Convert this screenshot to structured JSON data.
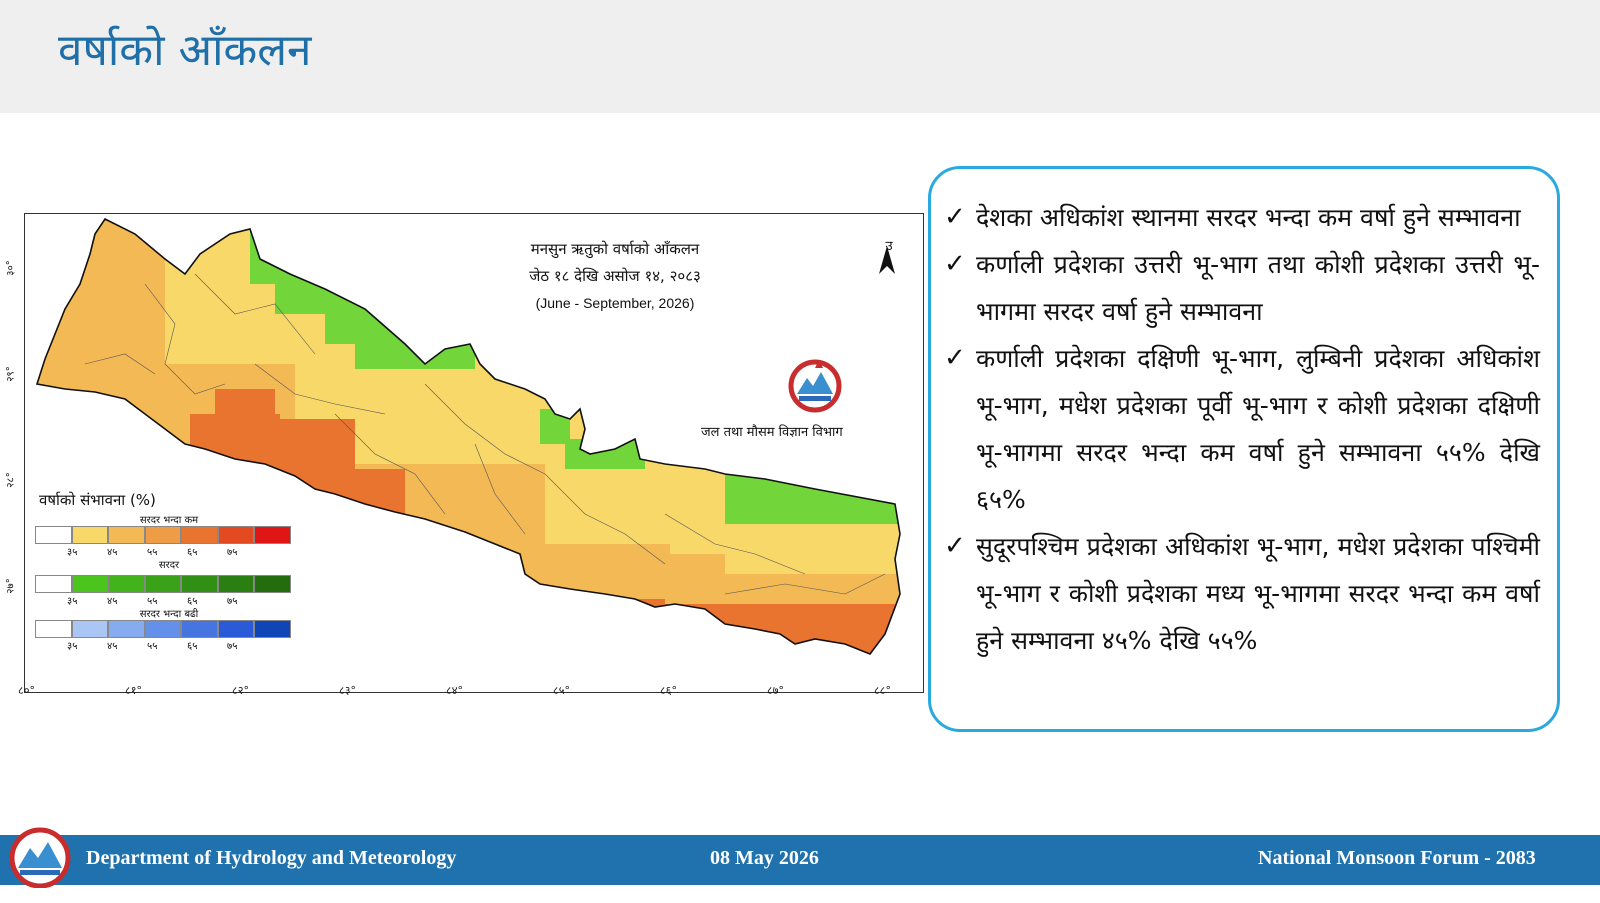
{
  "header": {
    "title": "वर्षाको आँकलन"
  },
  "map": {
    "title_line1": "मनसुन ऋतुको वर्षाको आँकलन",
    "title_line2": "जेठ १८ देखि असोज १४, २०८३",
    "title_line3": "(June - September, 2026)",
    "north_label": "उ",
    "agency_label": "जल तथा मौसम विज्ञान विभाग",
    "lat_labels": [
      "३०°",
      "२९°",
      "२८°",
      "२७°"
    ],
    "lon_labels": [
      "८०°",
      "८१°",
      "८२°",
      "८३°",
      "८४°",
      "८५°",
      "८६°",
      "८७°",
      "८८°"
    ],
    "legend": {
      "title": "वर्षाको संभावना (%)",
      "below_normal": {
        "label": "सरदर भन्दा कम",
        "colors": [
          "#ffffff",
          "#f9d86a",
          "#f3b955",
          "#ef9c46",
          "#e9742f",
          "#e44a22",
          "#e01515"
        ],
        "ticks": [
          "३५",
          "४५",
          "५५",
          "६५",
          "७५"
        ]
      },
      "normal": {
        "label": "सरदर",
        "colors": [
          "#ffffff",
          "#4cc41e",
          "#43b31b",
          "#3aa218",
          "#328f15",
          "#2b7e12",
          "#236d0f"
        ],
        "ticks": [
          "३५",
          "४५",
          "५५",
          "६५",
          "७५"
        ]
      },
      "above_normal": {
        "label": "सरदर भन्दा बढी",
        "colors": [
          "#ffffff",
          "#a9c6f5",
          "#86abef",
          "#6490ea",
          "#4675e2",
          "#2a5ad8",
          "#1045b8"
        ],
        "ticks": [
          "३५",
          "४५",
          "५५",
          "६५",
          "७५"
        ]
      }
    }
  },
  "bullets": [
    "देशका अधिकांश स्थानमा सरदर भन्दा कम वर्षा हुने सम्भावना",
    "कर्णाली प्रदेशका उत्तरी भू-भाग तथा कोशी प्रदेशका उत्तरी भू-भागमा सरदर वर्षा हुने सम्भावना",
    "कर्णाली प्रदेशका दक्षिणी भू-भाग, लुम्बिनी प्रदेशका अधिकांश भू-भाग, मधेश प्रदेशका पूर्वी भू-भाग र कोशी प्रदेशका दक्षिणी भू-भागमा सरदर भन्दा कम वर्षा हुने सम्भावना ५५% देखि ६५%",
    "सुदूरपश्चिम प्रदेशका अधिकांश भू-भाग, मधेश प्रदेशका पश्चिमी भू-भाग र कोशी प्रदेशका मध्य भू-भागमा सरदर भन्दा कम वर्षा हुने सम्भावना ४५% देखि ५५%"
  ],
  "footer": {
    "department": "Department of Hydrology and Meteorology",
    "date": "08 May 2026",
    "event": "National Monsoon Forum - 2083"
  },
  "colors": {
    "title": "#1f6fa8",
    "box_border": "#29a9df",
    "footer_bg": "#1f72ad"
  }
}
